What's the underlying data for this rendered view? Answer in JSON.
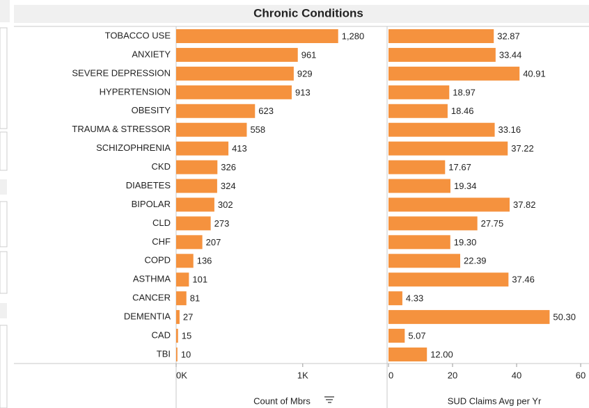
{
  "chart_data": {
    "type": "bar",
    "orientation": "horizontal",
    "title": "Chronic Conditions",
    "categories": [
      "TOBACCO USE",
      "ANXIETY",
      "SEVERE DEPRESSION",
      "HYPERTENSION",
      "OBESITY",
      "TRAUMA & STRESSOR",
      "SCHIZOPHRENIA",
      "CKD",
      "DIABETES",
      "BIPOLAR",
      "CLD",
      "CHF",
      "COPD",
      "ASTHMA",
      "CANCER",
      "DEMENTIA",
      "CAD",
      "TBI"
    ],
    "series": [
      {
        "name": "Count of Mbrs",
        "color": "#f5923e",
        "values": [
          1280,
          961,
          929,
          913,
          623,
          558,
          413,
          326,
          324,
          302,
          273,
          207,
          136,
          101,
          81,
          27,
          15,
          10
        ],
        "value_labels": [
          "1,280",
          "961",
          "929",
          "913",
          "623",
          "558",
          "413",
          "326",
          "324",
          "302",
          "273",
          "207",
          "136",
          "101",
          "81",
          "27",
          "15",
          "10"
        ],
        "xlim": [
          0,
          1650
        ],
        "xticks": [
          {
            "value": 0,
            "label": "0K"
          },
          {
            "value": 1000,
            "label": "1K"
          }
        ]
      },
      {
        "name": "SUD Claims Avg per Yr",
        "color": "#f5923e",
        "values": [
          32.87,
          33.44,
          40.91,
          18.97,
          18.46,
          33.16,
          37.22,
          17.67,
          19.34,
          37.82,
          27.75,
          19.3,
          22.39,
          37.46,
          4.33,
          50.3,
          5.07,
          12
        ],
        "value_labels": [
          "32.87",
          "33.44",
          "40.91",
          "18.97",
          "18.46",
          "33.16",
          "37.22",
          "17.67",
          "19.34",
          "37.82",
          "27.75",
          "19.30",
          "22.39",
          "37.46",
          "4.33",
          "50.30",
          "5.07",
          "12.00"
        ],
        "xlim": [
          0,
          62.6
        ],
        "xticks": [
          0,
          20,
          40,
          60
        ]
      }
    ]
  }
}
